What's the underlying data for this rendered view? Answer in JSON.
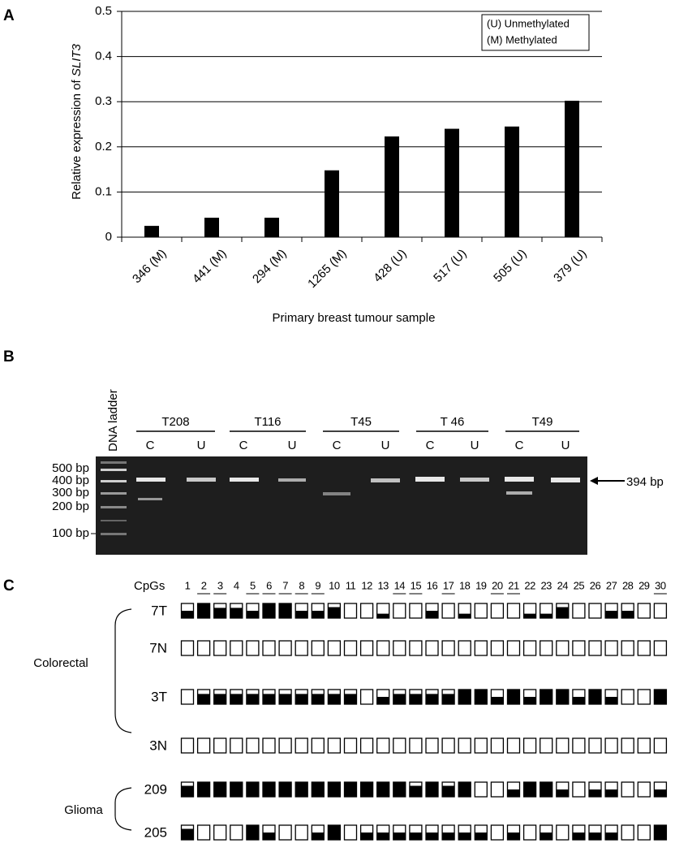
{
  "chart_data": {
    "type": "bar",
    "panel": "A",
    "y_label": "Relative expression of",
    "y_label_gene": "SLIT3",
    "x_label": "Primary breast tumour sample",
    "categories": [
      "346 (M)",
      "441 (M)",
      "294 (M)",
      "1265 (M)",
      "428 (U)",
      "517 (U)",
      "505 (U)",
      "379 (U)"
    ],
    "values": [
      0.025,
      0.043,
      0.043,
      0.148,
      0.223,
      0.24,
      0.245,
      0.302
    ],
    "color": "#000000",
    "ylim": [
      0,
      0.5
    ],
    "yticks": [
      0,
      0.1,
      0.2,
      0.3,
      0.4,
      0.5
    ],
    "grid": true,
    "legend_notes": [
      "(U) Unmethylated",
      "(M) Methylated"
    ]
  },
  "gel": {
    "panel": "B",
    "ladder_title": "DNA ladder",
    "groups": [
      {
        "name": "T208",
        "lanes": [
          "C",
          "U"
        ]
      },
      {
        "name": "T116",
        "lanes": [
          "C",
          "U"
        ]
      },
      {
        "name": "T45",
        "lanes": [
          "C",
          "U"
        ]
      },
      {
        "name": "T 46",
        "lanes": [
          "C",
          "U"
        ]
      },
      {
        "name": "T49",
        "lanes": [
          "C",
          "U"
        ]
      }
    ],
    "ladder_labels": [
      "500 bp",
      "400 bp",
      "300 bp",
      "200 bp",
      "100 bp"
    ],
    "arrow_label": "394 bp"
  },
  "methylation": {
    "panel": "C",
    "header": "CpGs",
    "cpgs": [
      1,
      2,
      3,
      4,
      5,
      6,
      7,
      8,
      9,
      10,
      11,
      12,
      13,
      14,
      15,
      16,
      17,
      18,
      19,
      20,
      21,
      22,
      23,
      24,
      25,
      26,
      27,
      28,
      29,
      30
    ],
    "underlined": [
      2,
      3,
      5,
      6,
      7,
      8,
      9,
      14,
      15,
      17,
      20,
      21,
      30
    ],
    "groups": [
      {
        "name": "Colorectal",
        "rows": [
          0,
          1,
          2,
          3
        ]
      },
      {
        "name": "Glioma",
        "rows": [
          4,
          5
        ]
      }
    ],
    "rows": [
      {
        "label": "7T",
        "levels": [
          0.5,
          1,
          0.7,
          0.7,
          0.5,
          1,
          1,
          0.5,
          0.5,
          0.75,
          0,
          0,
          0.3,
          0,
          0,
          0.5,
          0,
          0.3,
          0,
          0,
          0,
          0.3,
          0.3,
          0.75,
          0,
          0,
          0.5,
          0.5,
          0,
          0
        ]
      },
      {
        "label": "7N",
        "levels": [
          0,
          0,
          0,
          0,
          0,
          0,
          0,
          0,
          0,
          0,
          0,
          0,
          0,
          0,
          0,
          0,
          0,
          0,
          0,
          0,
          0,
          0,
          0,
          0,
          0,
          0,
          0,
          0,
          0,
          0
        ]
      },
      {
        "label": "3T",
        "levels": [
          0,
          0.7,
          0.7,
          0.7,
          0.7,
          0.7,
          0.7,
          0.7,
          0.7,
          0.7,
          0.7,
          0,
          0.5,
          0.7,
          0.7,
          0.7,
          0.7,
          1,
          1,
          0.5,
          1,
          0.5,
          1,
          1,
          0.5,
          1,
          0.5,
          0,
          0,
          1
        ]
      },
      {
        "label": "3N",
        "levels": [
          0,
          0,
          0,
          0,
          0,
          0,
          0,
          0,
          0,
          0,
          0,
          0,
          0,
          0,
          0,
          0,
          0,
          0,
          0,
          0,
          0,
          0,
          0,
          0,
          0,
          0,
          0,
          0,
          0,
          0
        ]
      },
      {
        "label": "209",
        "levels": [
          0.75,
          1,
          1,
          1,
          1,
          1,
          1,
          1,
          1,
          1,
          1,
          1,
          1,
          1,
          0.75,
          1,
          0.75,
          1,
          0,
          0,
          0.5,
          1,
          1,
          0.5,
          0,
          0.5,
          0.5,
          0,
          0,
          0.5
        ]
      },
      {
        "label": "205",
        "levels": [
          0.75,
          0,
          0,
          0,
          1,
          0.5,
          0,
          0,
          0.5,
          1,
          0,
          0.5,
          0.5,
          0.5,
          0.5,
          0.5,
          0.5,
          0.5,
          0.5,
          0,
          0.5,
          0,
          0.5,
          0,
          0.5,
          0.5,
          0.5,
          0,
          0,
          1
        ]
      }
    ]
  }
}
